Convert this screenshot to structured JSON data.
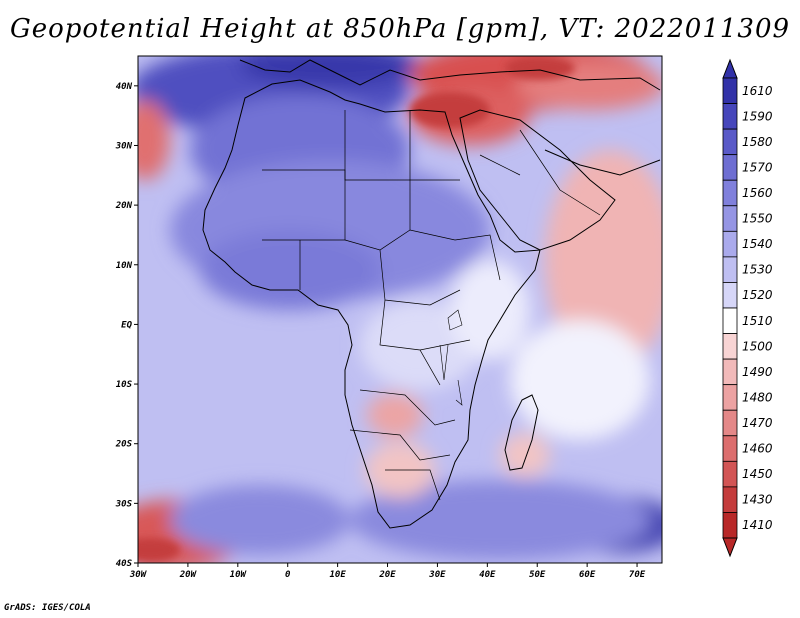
{
  "title": "Geopotential Height at 850hPa [gpm], VT: 2022011309",
  "credit": "GrADS: IGES/COLA",
  "map": {
    "lon_range": [
      -30,
      75
    ],
    "lat_range": [
      -40,
      45
    ],
    "lon_ticks": [
      {
        "value": -30,
        "label": "30W"
      },
      {
        "value": -20,
        "label": "20W"
      },
      {
        "value": -10,
        "label": "10W"
      },
      {
        "value": 0,
        "label": "0"
      },
      {
        "value": 10,
        "label": "10E"
      },
      {
        "value": 20,
        "label": "20E"
      },
      {
        "value": 30,
        "label": "30E"
      },
      {
        "value": 40,
        "label": "40E"
      },
      {
        "value": 50,
        "label": "50E"
      },
      {
        "value": 60,
        "label": "60E"
      },
      {
        "value": 70,
        "label": "70E"
      }
    ],
    "lat_ticks": [
      {
        "value": 40,
        "label": "40N"
      },
      {
        "value": 30,
        "label": "30N"
      },
      {
        "value": 20,
        "label": "20N"
      },
      {
        "value": 10,
        "label": "10N"
      },
      {
        "value": 0,
        "label": "EQ"
      },
      {
        "value": -10,
        "label": "10S"
      },
      {
        "value": -20,
        "label": "20S"
      },
      {
        "value": -30,
        "label": "30S"
      },
      {
        "value": -40,
        "label": "40S"
      }
    ]
  },
  "colorbar": {
    "labels": [
      "1610",
      "1590",
      "1580",
      "1570",
      "1560",
      "1550",
      "1540",
      "1530",
      "1520",
      "1510",
      "1500",
      "1490",
      "1480",
      "1470",
      "1460",
      "1450",
      "1430",
      "1410"
    ],
    "colors": [
      "#3232a8",
      "#4646bb",
      "#5a5ac8",
      "#6e6ed2",
      "#8080dc",
      "#9595e4",
      "#aaaaec",
      "#bfbff2",
      "#d6d6f8",
      "#ffffff",
      "#f8d4d4",
      "#f2baba",
      "#eca2a2",
      "#e48888",
      "#dc6e6e",
      "#d25555",
      "#c43c3c",
      "#b82828"
    ]
  },
  "colors": {
    "ocean_base": "#bfbff2",
    "land_base": "#c4c4f2",
    "outline": "#000000"
  }
}
